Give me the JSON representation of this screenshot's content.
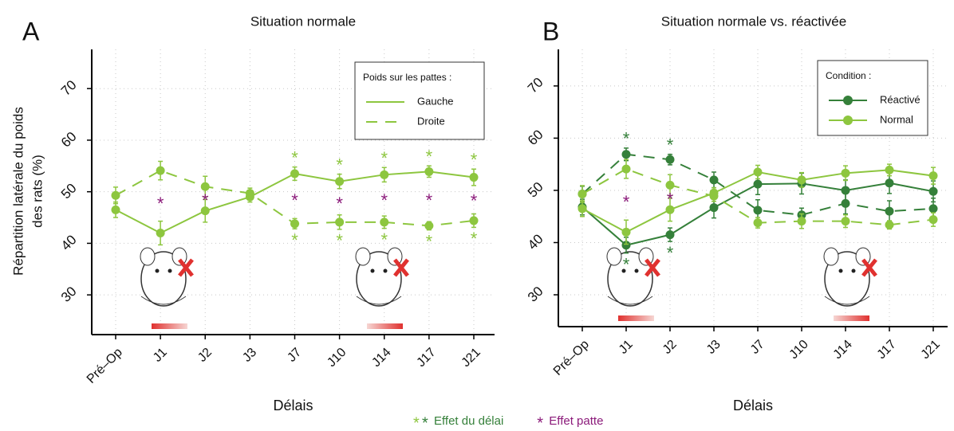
{
  "chart_data": [
    {
      "type": "line",
      "panel": "A",
      "title": "Situation normale",
      "y_label": [
        "Répartition latérale du poids",
        "des rats (%)"
      ],
      "x_label": "Délais",
      "categories": [
        "Pré–Op",
        "J1",
        "J2",
        "J3",
        "J7",
        "J10",
        "J14",
        "J17",
        "J21"
      ],
      "ylim": [
        22.3,
        77.6
      ],
      "yticks": [
        30,
        40,
        50,
        60,
        70
      ],
      "grid": true,
      "legend": {
        "title": "Poids sur les pattes :",
        "markers": false
      },
      "series": [
        {
          "name": "Gauche",
          "color": "#8dc63f",
          "lines": [
            {
              "dashed": false,
              "values": [
                46.5,
                42,
                46.3,
                49,
                53.5,
                52,
                53.3,
                53.9,
                52.8
              ],
              "errors": [
                1.5,
                2.3,
                2.2,
                1,
                1.3,
                1.4,
                1.4,
                1.1,
                1.6
              ],
              "delay_effect": [
                false,
                false,
                false,
                false,
                true,
                true,
                true,
                true,
                true
              ]
            }
          ]
        },
        {
          "name": "Droite",
          "color": "#8dc63f",
          "legend_dashed": true,
          "lines": [
            {
              "dashed": true,
              "values": [
                49.3,
                54.1,
                51,
                49.7,
                43.8,
                44.1,
                44.1,
                43.4,
                44.4
              ],
              "errors": [
                1.6,
                1.8,
                2,
                1,
                1,
                1.4,
                1.2,
                0.8,
                1.3
              ],
              "delay_effect": [
                false,
                false,
                false,
                false,
                true,
                true,
                true,
                true,
                true
              ]
            }
          ]
        }
      ],
      "paw_effect": [
        false,
        true,
        true,
        false,
        true,
        true,
        true,
        true,
        true
      ]
    },
    {
      "type": "line",
      "panel": "B",
      "title": "Situation normale vs. réactivée",
      "x_label": "Délais",
      "categories": [
        "Pré–Op",
        "J1",
        "J2",
        "J3",
        "J7",
        "J10",
        "J14",
        "J17",
        "J21"
      ],
      "ylim": [
        23.9,
        77
      ],
      "yticks": [
        30,
        40,
        50,
        60,
        70
      ],
      "grid": true,
      "legend": {
        "title": "Condition :",
        "markers": true
      },
      "series": [
        {
          "name": "Réactivé",
          "color": "#35803a",
          "lines": [
            {
              "dashed": false,
              "values": [
                46.8,
                39.5,
                41.5,
                46.7,
                51.2,
                51.3,
                50,
                51.4,
                49.8
              ],
              "errors": [
                1.5,
                1.5,
                1.3,
                2,
                2,
                2,
                2,
                2,
                2
              ],
              "delay_effect": [
                false,
                true,
                true,
                false,
                false,
                false,
                false,
                false,
                false
              ]
            },
            {
              "dashed": true,
              "values": [
                49.3,
                56.9,
                55.9,
                52,
                46.2,
                45.3,
                47.5,
                46,
                46.5
              ],
              "errors": [
                1.5,
                1.2,
                1,
                1.5,
                2,
                1.3,
                2,
                2,
                2
              ],
              "delay_effect": [
                false,
                true,
                true,
                false,
                false,
                false,
                false,
                false,
                false
              ]
            }
          ]
        },
        {
          "name": "Normal",
          "color": "#8dc63f",
          "lines": [
            {
              "dashed": false,
              "values": [
                46.5,
                42,
                46.3,
                49.5,
                53.5,
                52,
                53.3,
                53.9,
                52.8
              ],
              "errors": [
                1.5,
                2.3,
                2.2,
                1,
                1.3,
                1.4,
                1.4,
                1.1,
                1.6
              ],
              "delay_effect": [
                false,
                false,
                false,
                false,
                false,
                false,
                false,
                false,
                false
              ]
            },
            {
              "dashed": true,
              "values": [
                49.3,
                54.1,
                51,
                48.9,
                43.8,
                44.1,
                44.1,
                43.4,
                44.4
              ],
              "errors": [
                1.6,
                1.8,
                2,
                1,
                1,
                1.4,
                1.2,
                0.8,
                1.3
              ],
              "delay_effect": [
                false,
                false,
                false,
                false,
                false,
                false,
                false,
                false,
                false
              ]
            }
          ]
        }
      ],
      "paw_effect": [
        false,
        true,
        true,
        false,
        false,
        false,
        false,
        false,
        false
      ]
    }
  ],
  "footnote": [
    {
      "symbols": [
        "*",
        "*"
      ],
      "colors": [
        "#8dc63f",
        "#35803a"
      ],
      "label": "Effet du délai"
    },
    {
      "symbols": [
        "*"
      ],
      "colors": [
        "#8b1a7a"
      ],
      "label": "Effet patte"
    }
  ]
}
